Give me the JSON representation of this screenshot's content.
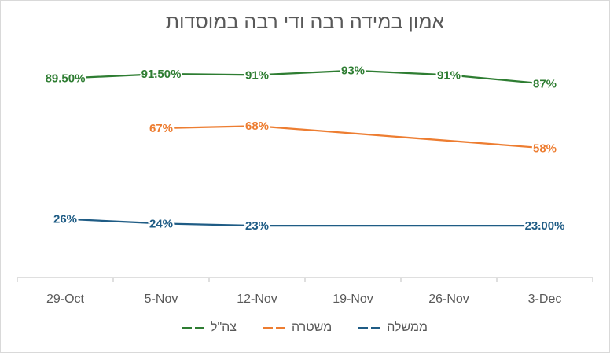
{
  "chart_data": {
    "type": "line",
    "title": "אמון במידה רבה ודי רבה במוסדות",
    "categories": [
      "29-Oct",
      "5-Nov",
      "12-Nov",
      "19-Nov",
      "26-Nov",
      "3-Dec"
    ],
    "ylim": [
      0,
      100
    ],
    "grid": false,
    "legend_position": "bottom",
    "series": [
      {
        "name": "צה\"ל",
        "color": "#2e7d32",
        "values": [
          89.5,
          91.5,
          91,
          93,
          91,
          87
        ],
        "labels": [
          "89.50%",
          "91.50%",
          "91%",
          "93%",
          "91%",
          "87%"
        ]
      },
      {
        "name": "משטרה",
        "color": "#ed7d31",
        "values": [
          null,
          67,
          68,
          null,
          null,
          58
        ],
        "labels": [
          null,
          "67%",
          "68%",
          null,
          null,
          "58%"
        ]
      },
      {
        "name": "ממשלה",
        "color": "#1f5c85",
        "values": [
          26,
          24,
          23,
          null,
          null,
          23
        ],
        "labels": [
          "26%",
          "24%",
          "23%",
          null,
          null,
          "23.00%"
        ]
      }
    ]
  }
}
